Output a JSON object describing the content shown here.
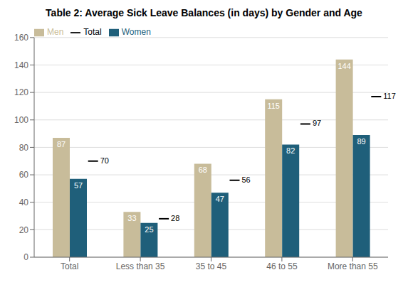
{
  "chart_data": {
    "type": "bar",
    "title": "Table 2: Average Sick Leave Balances (in days) by Gender and Age",
    "categories": [
      "Total",
      "Less than 35",
      "35 to 45",
      "46 to 55",
      "More than 55"
    ],
    "series": [
      {
        "name": "Men",
        "color": "#c8bc9a",
        "values": [
          87,
          33,
          68,
          115,
          144
        ]
      },
      {
        "name": "Women",
        "color": "#1f5f7a",
        "values": [
          57,
          25,
          47,
          82,
          89
        ]
      },
      {
        "name": "Total",
        "color": "#000000",
        "values": [
          70,
          28,
          56,
          97,
          117
        ],
        "type": "scatter",
        "marker": "hline"
      }
    ],
    "ylim": [
      0,
      160
    ],
    "yticks": [
      0,
      20,
      40,
      60,
      80,
      100,
      120,
      140,
      160
    ],
    "grid": true,
    "legend": "upper left",
    "data_labels": true
  }
}
